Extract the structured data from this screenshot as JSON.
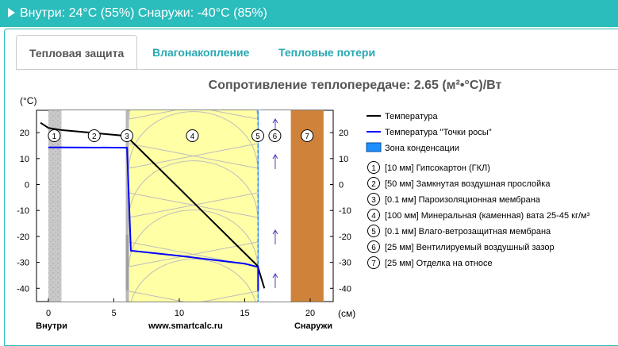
{
  "header": {
    "summary": "Внутри: 24°C (55%) Снаружи: -40°C (85%)"
  },
  "tabs": [
    {
      "label": "Тепловая защита",
      "active": true
    },
    {
      "label": "Влагонакопление",
      "active": false
    },
    {
      "label": "Тепловые потери",
      "active": false
    }
  ],
  "chart_title": "Сопротивление теплопередаче: 2.65 (м²•°С)/Вт",
  "axis": {
    "y_unit": "(°C)",
    "x_unit": "(см)",
    "left_label": "Внутри",
    "center_label": "www.smartcalc.ru",
    "right_label": "Снаружи"
  },
  "legend": {
    "temperature": "Температура",
    "dew_point": "Температура \"Точки росы\"",
    "condensation": "Зона конденсации"
  },
  "layers": [
    {
      "num": "1",
      "label": "[10 мм] Гипсокартон (ГКЛ)"
    },
    {
      "num": "2",
      "label": "[50 мм] Замкнутая воздушная прослойка"
    },
    {
      "num": "3",
      "label": "[0.1 мм] Пароизоляционная мембрана"
    },
    {
      "num": "4",
      "label": "[100 мм] Минеральная (каменная) вата 25-45 кг/м³"
    },
    {
      "num": "5",
      "label": "[0.1 мм] Влаго-ветрозащитная мембрана"
    },
    {
      "num": "6",
      "label": "[25 мм] Вентилируемый воздушный зазор"
    },
    {
      "num": "7",
      "label": "[25 мм] Отделка на относе"
    }
  ],
  "chart_data": {
    "type": "line",
    "x_unit": "см",
    "y_unit": "°C",
    "xlim": [
      -1,
      22
    ],
    "ylim": [
      -45,
      29
    ],
    "x_ticks": [
      0,
      5,
      10,
      15,
      20
    ],
    "y_ticks": [
      20,
      10,
      0,
      -10,
      -20,
      -30,
      -40
    ],
    "layer_boundaries_cm": [
      0,
      1,
      6,
      6.01,
      16.01,
      16.02,
      18.52,
      21.02
    ],
    "series": [
      {
        "name": "Температура",
        "color": "#000000",
        "x": [
          -0.6,
          0,
          1,
          6,
          6.01,
          16.01,
          16.02,
          16.5
        ],
        "y": [
          23.8,
          21.8,
          21.0,
          18.7,
          18.4,
          -31.5,
          -32.0,
          -40.0
        ]
      },
      {
        "name": "Температура \"Точки росы\"",
        "color": "#0000ff",
        "x": [
          0,
          1,
          6,
          6.01,
          6.3,
          10,
          15,
          16.02,
          16.02
        ],
        "y": [
          14.3,
          14.3,
          14.2,
          13.6,
          -25.5,
          -27.5,
          -30.5,
          -31.8,
          -41.0
        ]
      }
    ],
    "condensation_zone_cm": [
      16.01,
      16.2
    ]
  }
}
